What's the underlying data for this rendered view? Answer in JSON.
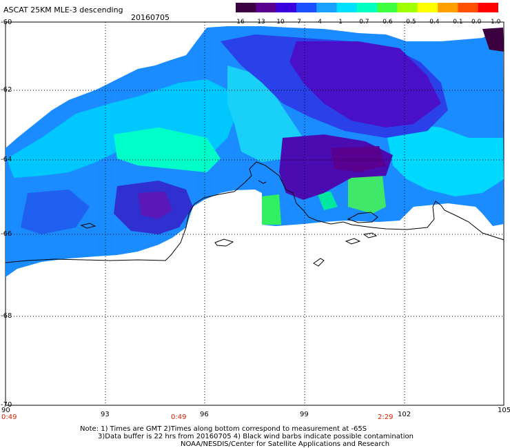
{
  "header": {
    "title": "ASCAT 25KM MLE-3 descending",
    "date": "20160705"
  },
  "colorbar": {
    "labels": [
      "-16",
      "-13",
      "-10",
      "-7",
      "-4",
      "-1",
      "-0.7",
      "-0.6",
      "-0.5",
      "-0.4",
      "-0.1",
      "0.0",
      "1.0"
    ],
    "colors": [
      "#3a0040",
      "#5a0090",
      "#3a00e0",
      "#1a50ff",
      "#1aa0ff",
      "#00e0ff",
      "#00ffc0",
      "#40ff40",
      "#a0ff00",
      "#ffff00",
      "#ffa000",
      "#ff5000",
      "#ff0000"
    ]
  },
  "axes": {
    "y_labels": [
      "-60",
      "-62",
      "-64",
      "-66",
      "-68",
      "-70"
    ],
    "x_labels": [
      "90",
      "93",
      "96",
      "99",
      "102",
      "105"
    ]
  },
  "times": [
    "0:49",
    "0:49",
    "2:29"
  ],
  "notes": [
    "Note: 1) Times are GMT 2)Times along bottom correspond to measurement at -65S",
    "3)Data buffer is 22 hrs from 20160705 4) Black wind barbs indicate possible contamination",
    "NOAA/NESDIS/Center for Satellite Applications and Research"
  ]
}
